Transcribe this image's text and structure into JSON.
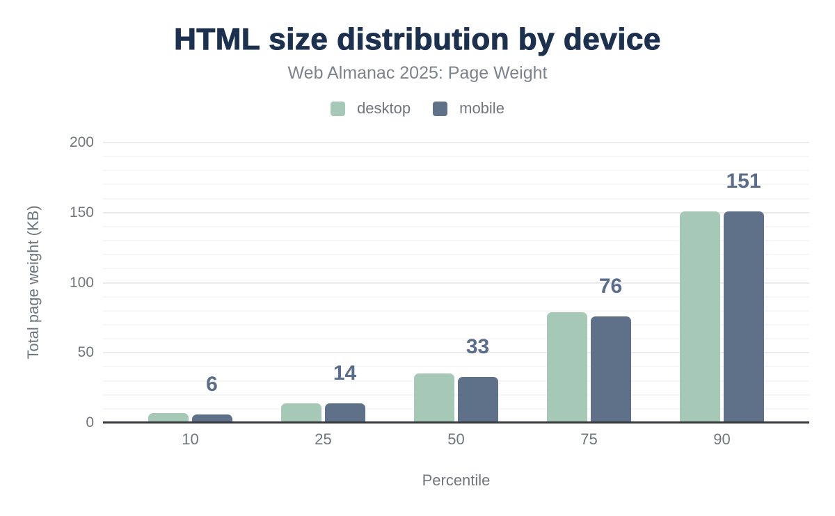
{
  "chart_data": {
    "type": "bar",
    "title": "HTML size distribution by device",
    "subtitle": "Web Almanac 2025: Page Weight",
    "xlabel": "Percentile",
    "ylabel": "Total page weight (KB)",
    "categories": [
      "10",
      "25",
      "50",
      "75",
      "90"
    ],
    "series": [
      {
        "name": "desktop",
        "color": "#a6c9b7",
        "values": [
          7,
          14,
          35,
          79,
          151
        ]
      },
      {
        "name": "mobile",
        "color": "#5e7189",
        "values": [
          6,
          14,
          33,
          76,
          151
        ]
      }
    ],
    "data_labels": {
      "series": "mobile",
      "values": [
        "6",
        "14",
        "33",
        "76",
        "151"
      ],
      "color": "#5a6d8c"
    },
    "ylim": [
      0,
      200
    ],
    "yticks": [
      0,
      50,
      100,
      150,
      200
    ],
    "grid": {
      "minor_step": 10,
      "major_step": 50,
      "vertical": false
    },
    "legend": {
      "position": "top",
      "items": [
        {
          "label": "desktop",
          "color": "#a6c9b7"
        },
        {
          "label": "mobile",
          "color": "#5e7189"
        }
      ]
    },
    "colors": {
      "title": "#1c314f",
      "subtitle": "#7d828c",
      "axis_text": "#70757e",
      "axis_line": "#36393e",
      "grid_minor": "#f6f6f7",
      "grid_major": "#ebebec"
    }
  }
}
